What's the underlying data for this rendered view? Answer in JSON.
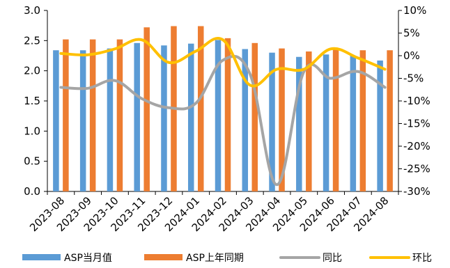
{
  "chart_data": {
    "type": "bar",
    "categories": [
      "2023-08",
      "2023-09",
      "2023-10",
      "2023-11",
      "2023-12",
      "2024-01",
      "2024-02",
      "2024-03",
      "2024-04",
      "2024-05",
      "2024-06",
      "2024-07",
      "2024-08"
    ],
    "left_axis": {
      "ylim": [
        0,
        3.0
      ],
      "ticks": [
        "3.0",
        "2.5",
        "2.0",
        "1.5",
        "1.0",
        "0.5",
        "0.0"
      ],
      "tick_values": [
        3.0,
        2.5,
        2.0,
        1.5,
        1.0,
        0.5,
        0.0
      ]
    },
    "right_axis": {
      "ylim": [
        -30,
        10
      ],
      "ticks": [
        "10%",
        "5%",
        "0%",
        "-5%",
        "-10%",
        "-15%",
        "-20%",
        "-25%",
        "-30%"
      ],
      "tick_values": [
        10,
        5,
        0,
        -5,
        -10,
        -15,
        -20,
        -25,
        -30
      ]
    },
    "series": [
      {
        "name": "ASP当月值",
        "kind": "bar",
        "axis": "left",
        "color": "#5B9BD5",
        "values": [
          2.34,
          2.34,
          2.37,
          2.46,
          2.42,
          2.45,
          2.51,
          2.36,
          2.3,
          2.23,
          2.27,
          2.25,
          2.17
        ]
      },
      {
        "name": "ASP上年同期",
        "kind": "bar",
        "axis": "left",
        "color": "#ED7D31",
        "values": [
          2.52,
          2.52,
          2.52,
          2.72,
          2.74,
          2.74,
          2.54,
          2.46,
          2.37,
          2.32,
          2.37,
          2.34,
          2.34
        ]
      },
      {
        "name": "同比",
        "kind": "line",
        "axis": "right",
        "color": "#A5A5A5",
        "values": [
          -7.0,
          -7.2,
          -5.5,
          -9.5,
          -11.5,
          -10.5,
          -1.0,
          -4.0,
          -28.5,
          -3.5,
          -5.0,
          -3.5,
          -7.0
        ]
      },
      {
        "name": "环比",
        "kind": "line",
        "axis": "right",
        "color": "#FFC000",
        "values": [
          0.5,
          0.2,
          1.5,
          3.5,
          -1.5,
          1.0,
          3.5,
          -6.5,
          -3.0,
          -3.0,
          1.5,
          -0.5,
          -3.0
        ]
      }
    ],
    "legend_position": "bottom",
    "grid": false
  }
}
